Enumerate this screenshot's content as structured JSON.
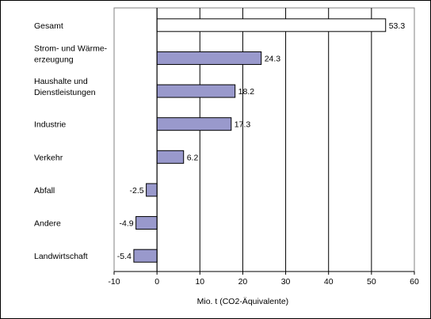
{
  "chart_data": {
    "type": "bar",
    "orientation": "horizontal",
    "xlabel": "Mio. t (CO2-Äquivalente)",
    "xlim": [
      -10,
      60
    ],
    "xticks": [
      -10,
      0,
      10,
      20,
      30,
      40,
      50,
      60
    ],
    "grid": "vertical",
    "categories": [
      [
        "Gesamt"
      ],
      [
        "Strom- und Wärme-",
        "erzeugung"
      ],
      [
        "Haushalte und",
        "Dienstleistungen"
      ],
      [
        "Industrie"
      ],
      [
        "Verkehr"
      ],
      [
        "Abfall"
      ],
      [
        "Andere"
      ],
      [
        "Landwirtschaft"
      ]
    ],
    "values": [
      53.3,
      24.3,
      18.2,
      17.3,
      6.2,
      -2.5,
      -4.9,
      -5.4
    ],
    "value_labels": [
      "53.3",
      "24.3",
      "18.2",
      "17.3",
      "6.2",
      "-2.5",
      "-4.9",
      "-5.4"
    ],
    "colors": {
      "total": "#ffffff",
      "bars": "#9999cc",
      "edge": "#000000",
      "grid": "#000000",
      "plot_border": "#808080"
    }
  }
}
